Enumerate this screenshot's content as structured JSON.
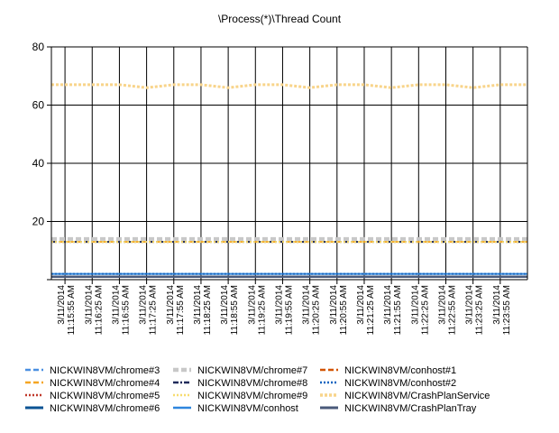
{
  "chart_data": {
    "type": "line",
    "title": "\\Process(*)\\Thread Count",
    "xlabel": "",
    "ylabel": "",
    "ylim": [
      0,
      80
    ],
    "yticks": [
      20,
      40,
      60,
      80
    ],
    "grid": true,
    "legend_position": "bottom",
    "x": [
      "3/11/2014 11:15:55 AM",
      "3/11/2014 11:16:25 AM",
      "3/11/2014 11:16:55 AM",
      "3/11/2014 11:17:25 AM",
      "3/11/2014 11:17:55 AM",
      "3/11/2014 11:18:25 AM",
      "3/11/2014 11:18:55 AM",
      "3/11/2014 11:19:25 AM",
      "3/11/2014 11:19:55 AM",
      "3/11/2014 11:20:25 AM",
      "3/11/2014 11:20:55 AM",
      "3/11/2014 11:21:25 AM",
      "3/11/2014 11:21:55 AM",
      "3/11/2014 11:22:25 AM",
      "3/11/2014 11:22:55 AM",
      "3/11/2014 11:23:25 AM",
      "3/11/2014 11:23:55 AM"
    ],
    "series": [
      {
        "name": "NICKWIN8VM/chrome#3",
        "color": "#4a90e2",
        "dash": "6,3",
        "width": 2,
        "values": [
          1,
          1,
          1,
          1,
          1,
          1,
          1,
          1,
          1,
          1,
          1,
          1,
          1,
          1,
          1,
          1,
          1
        ]
      },
      {
        "name": "NICKWIN8VM/chrome#4",
        "color": "#f5a623",
        "dash": "6,3",
        "width": 2,
        "values": [
          13,
          13,
          13,
          13,
          13,
          13,
          13,
          13,
          13,
          13,
          13,
          13,
          13,
          13,
          13,
          13,
          13
        ]
      },
      {
        "name": "NICKWIN8VM/chrome#5",
        "color": "#c0392b",
        "dash": "2,2",
        "width": 2,
        "values": [
          1,
          1,
          1,
          1,
          1,
          1,
          1,
          1,
          1,
          1,
          1,
          1,
          1,
          1,
          1,
          1,
          1
        ]
      },
      {
        "name": "NICKWIN8VM/chrome#6",
        "color": "#0b5394",
        "dash": "",
        "width": 2.5,
        "values": [
          1,
          1,
          1,
          1,
          1,
          1,
          1,
          1,
          1,
          1,
          1,
          1,
          1,
          1,
          1,
          1,
          1
        ]
      },
      {
        "name": "NICKWIN8VM/chrome#7",
        "color": "#c8c8c8",
        "dash": "6,3",
        "width": 4,
        "values": [
          14,
          14,
          14,
          14,
          14,
          14,
          14,
          14,
          14,
          14,
          14,
          14,
          14,
          14,
          14,
          14,
          14
        ]
      },
      {
        "name": "NICKWIN8VM/chrome#8",
        "color": "#1f2a5a",
        "dash": "6,2,2,2",
        "width": 2,
        "values": [
          13,
          13,
          13,
          13,
          13,
          13,
          13,
          13,
          13,
          13,
          13,
          13,
          13,
          13,
          13,
          13,
          13
        ]
      },
      {
        "name": "NICKWIN8VM/chrome#9",
        "color": "#f7dc6f",
        "dash": "2,2",
        "width": 2,
        "values": [
          13,
          13,
          13,
          13,
          13,
          13,
          13,
          13,
          13,
          13,
          13,
          13,
          13,
          13,
          13,
          13,
          13
        ]
      },
      {
        "name": "NICKWIN8VM/conhost",
        "color": "#2e86de",
        "dash": "",
        "width": 2,
        "values": [
          2,
          2,
          2,
          2,
          2,
          2,
          2,
          2,
          2,
          2,
          2,
          2,
          2,
          2,
          2,
          2,
          2
        ]
      },
      {
        "name": "NICKWIN8VM/conhost#1",
        "color": "#d35400",
        "dash": "6,3",
        "width": 2,
        "values": [
          1,
          1,
          1,
          1,
          1,
          1,
          1,
          1,
          1,
          1,
          1,
          1,
          1,
          1,
          1,
          1,
          1
        ]
      },
      {
        "name": "NICKWIN8VM/conhost#2",
        "color": "#1565c0",
        "dash": "2,2",
        "width": 2,
        "values": [
          2,
          2,
          2,
          2,
          2,
          2,
          2,
          2,
          2,
          2,
          2,
          2,
          2,
          2,
          2,
          2,
          2
        ]
      },
      {
        "name": "NICKWIN8VM/CrashPlanService",
        "color": "#f8d48a",
        "dash": "3,2",
        "width": 3,
        "values": [
          67,
          67,
          67,
          66,
          67,
          67,
          66,
          67,
          67,
          66,
          67,
          67,
          66,
          67,
          67,
          66,
          67
        ]
      },
      {
        "name": "NICKWIN8VM/CrashPlanTray",
        "color": "#4a5a7a",
        "dash": "",
        "width": 2.5,
        "values": [
          1,
          1,
          1,
          1,
          1,
          1,
          1,
          1,
          1,
          1,
          1,
          1,
          1,
          1,
          1,
          1,
          1
        ]
      }
    ]
  }
}
